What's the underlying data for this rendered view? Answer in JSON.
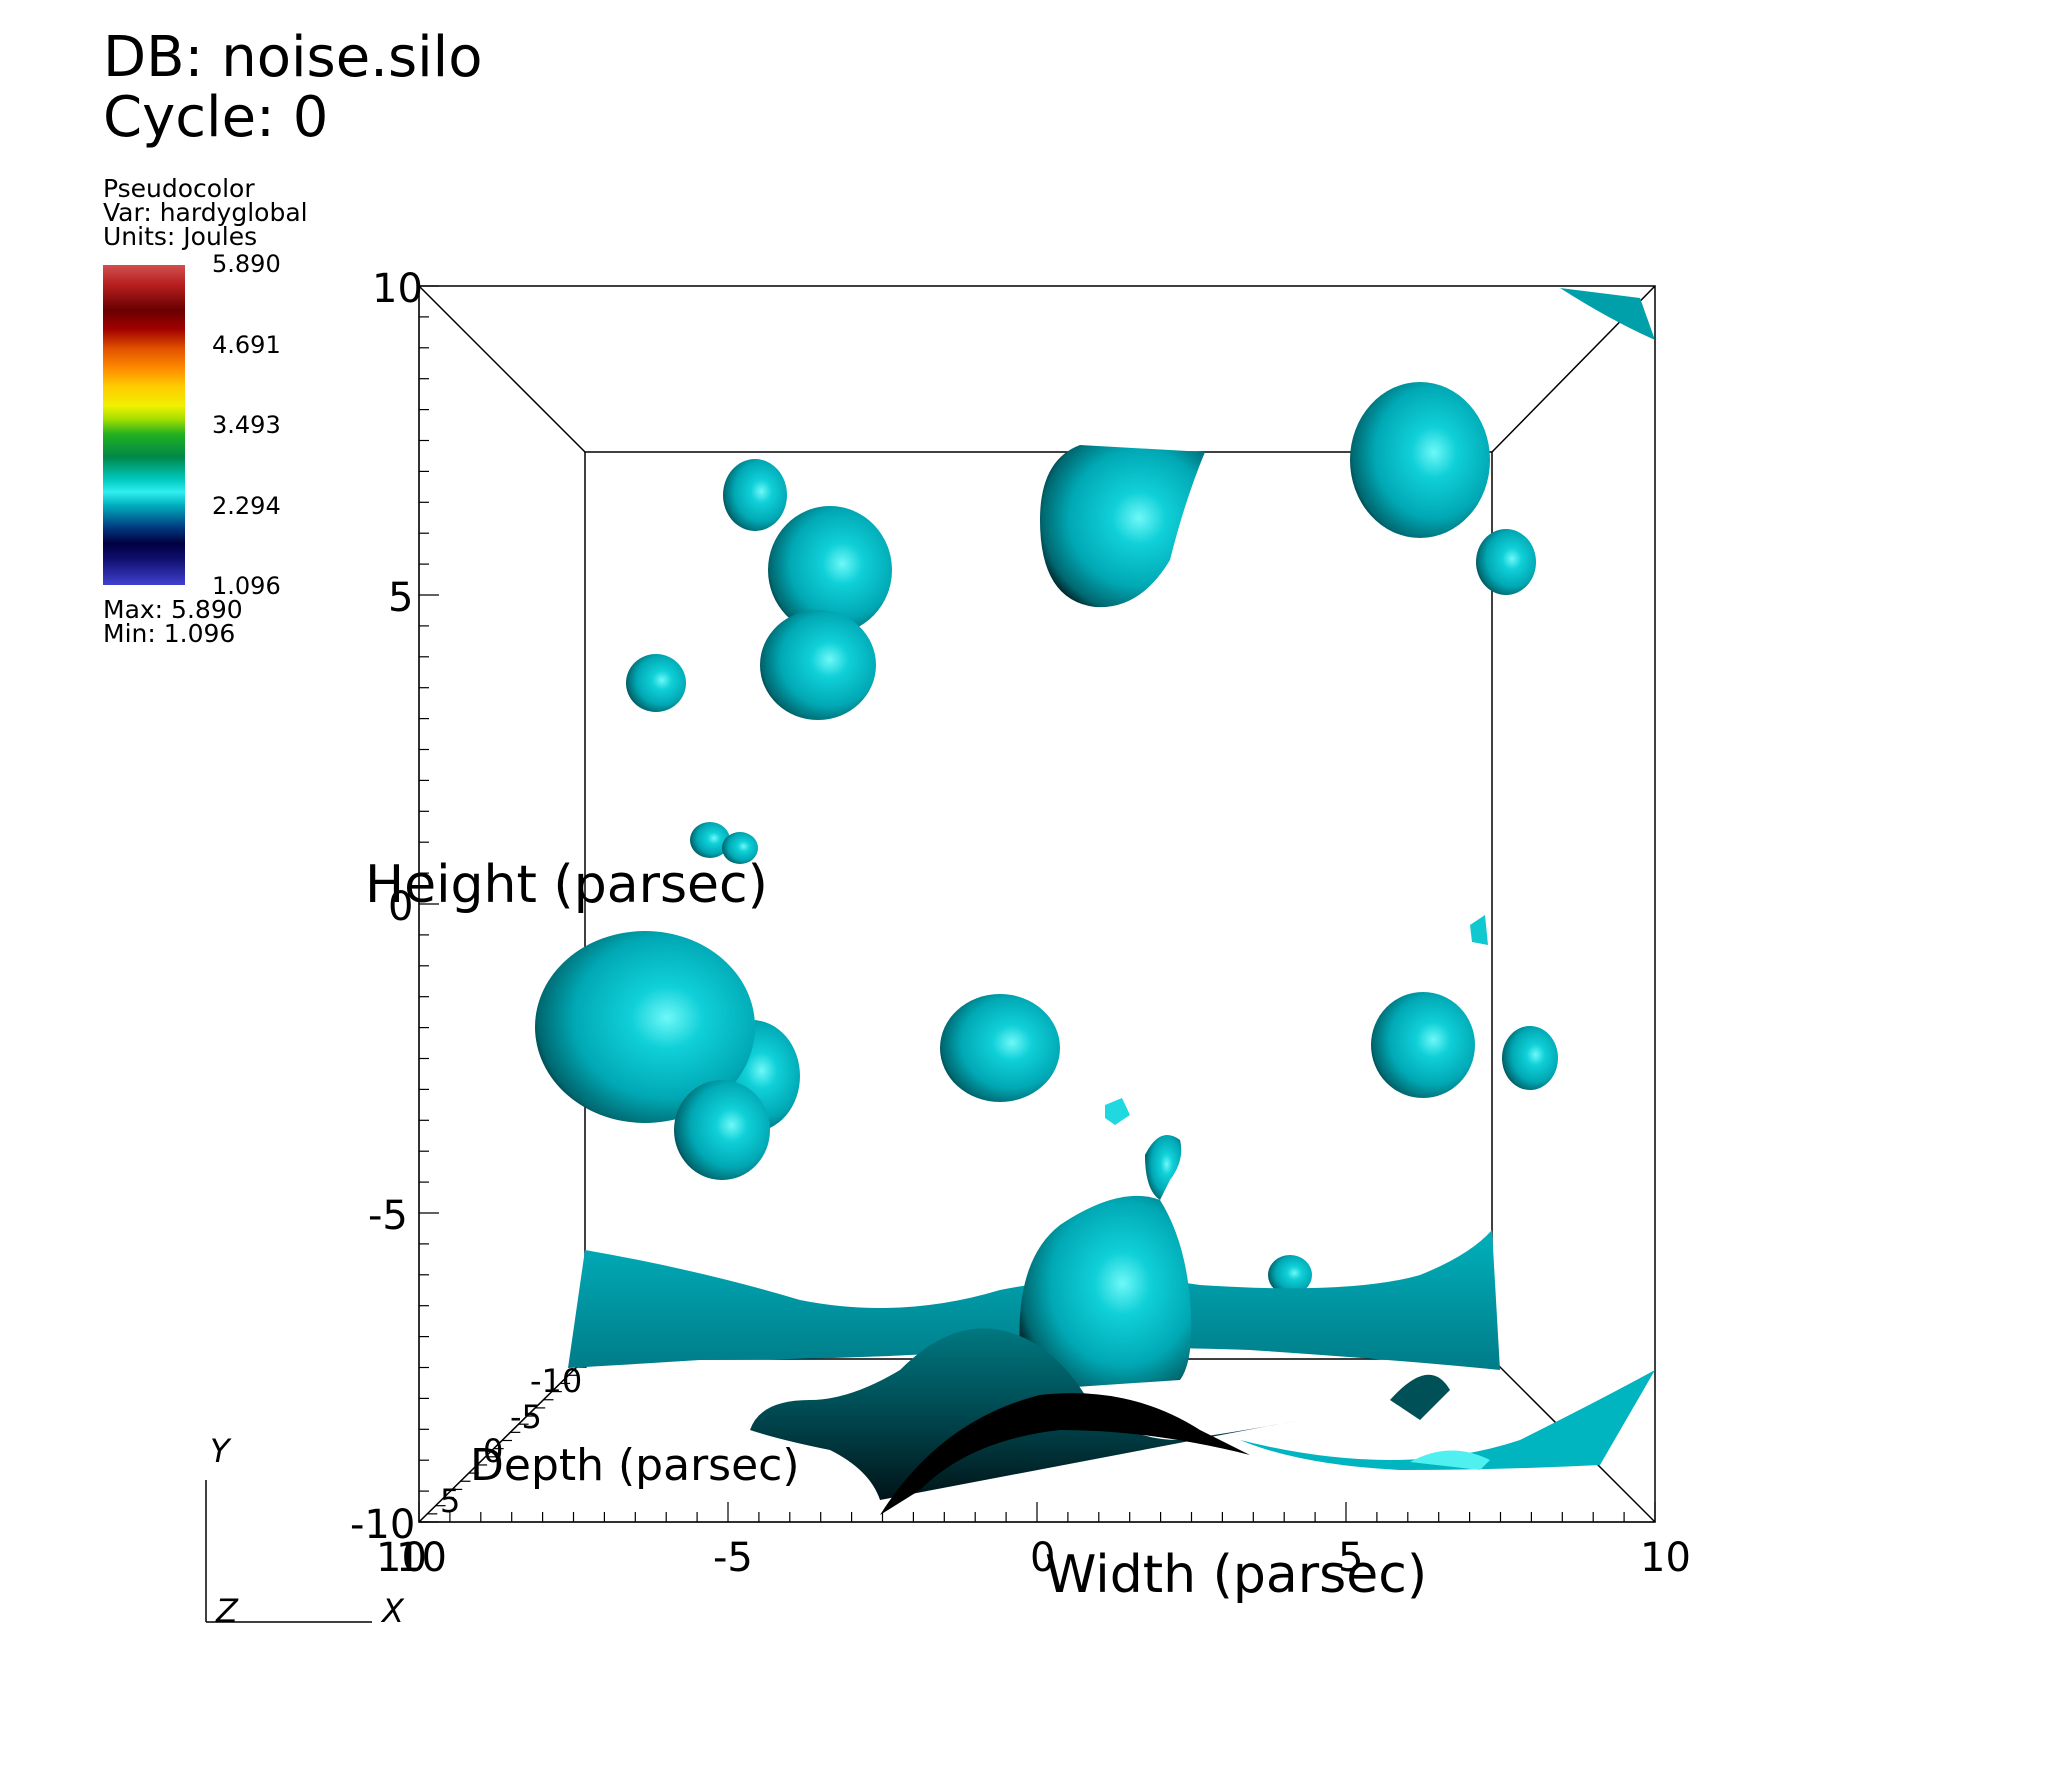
{
  "header": {
    "db": "DB: noise.silo",
    "cycle": "Cycle: 0"
  },
  "legend": {
    "plot_type": "Pseudocolor",
    "var": "Var: hardyglobal",
    "units": "Units: Joules",
    "ticks": [
      "5.890",
      "4.691",
      "3.493",
      "2.294",
      "1.096"
    ],
    "max": "Max:  5.890",
    "min": "Min:  1.096"
  },
  "axes": {
    "y_title": "Height (parsec)",
    "x_title": "Width (parsec)",
    "z_title": "Depth (parsec)",
    "y_ticks": [
      "10",
      "5",
      "0",
      "-5",
      "-10"
    ],
    "x_ticks": [
      "10",
      "-5",
      "0",
      "5",
      "10"
    ],
    "x_ticks_left_extra": "10",
    "z_ticks": [
      "-10",
      "-5",
      "0",
      "5"
    ]
  },
  "triad": {
    "y": "Y",
    "z": "Z",
    "x": "X"
  },
  "colors": {
    "surface": "#00b8c4",
    "surface_dark": "#003a40",
    "surface_light": "#40f0f0"
  }
}
